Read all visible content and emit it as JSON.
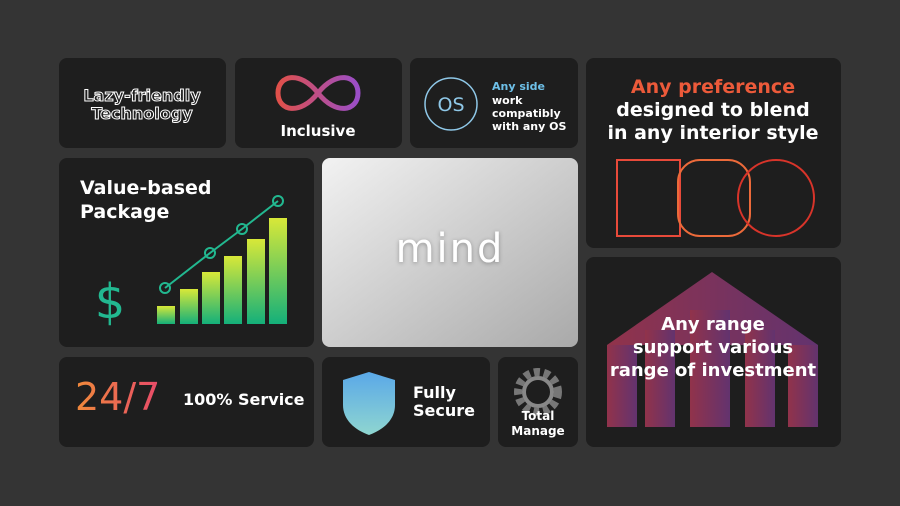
{
  "tiles": {
    "lazy": {
      "lines": [
        "Lazy-friendly",
        "Technology"
      ]
    },
    "inclusive": {
      "label": "Inclusive"
    },
    "os": {
      "badge": "OS",
      "heading": "Any side",
      "lines": [
        "work",
        "compatibly",
        "with any OS"
      ]
    },
    "preference": {
      "heading": "Any preference",
      "lines": [
        "designed to blend",
        "in any interior style"
      ]
    },
    "value": {
      "lines": [
        "Value-based",
        "Package"
      ],
      "symbol": "$"
    },
    "brand": {
      "logo": "mind"
    },
    "range": {
      "lines": [
        "Any range",
        "support various",
        "range of investment"
      ]
    },
    "service": {
      "badge": "24/7",
      "label": "100% Service"
    },
    "secure": {
      "lines": [
        "Fully",
        "Secure"
      ]
    },
    "manage": {
      "lines": [
        "Total",
        "Manage"
      ]
    }
  }
}
